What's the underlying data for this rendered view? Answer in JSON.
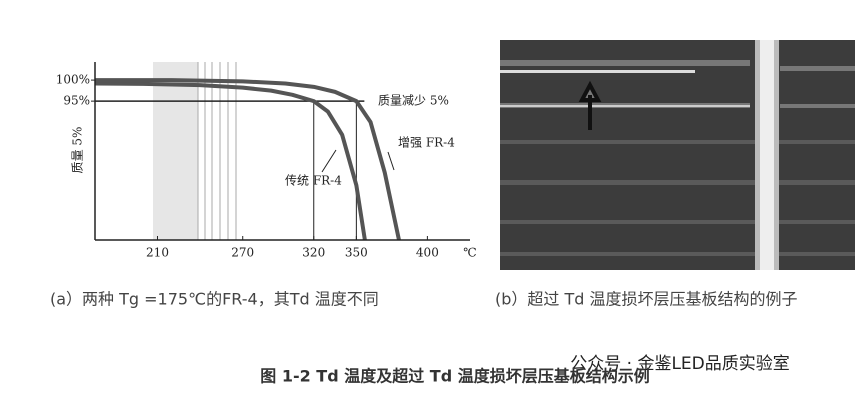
{
  "chart_data": {
    "type": "line",
    "y_label": "质量 5%",
    "x_unit": "℃",
    "annotation": "质量减少 5%",
    "xlim": [
      166,
      430
    ],
    "ylim": [
      62,
      104.3
    ],
    "xticks": [
      210,
      270,
      320,
      350,
      400
    ],
    "yticks": [
      {
        "value": 100,
        "label": "100%"
      },
      {
        "value": 95,
        "label": "95%"
      }
    ],
    "series": [
      {
        "name": "传统 FR-4",
        "color": "#555555",
        "x": [
          166,
          200,
          240,
          270,
          290,
          305,
          320,
          330,
          340,
          350,
          356
        ],
        "values": [
          99.2,
          99.1,
          98.8,
          98.2,
          97.5,
          96.5,
          95,
          92.5,
          87,
          75,
          62
        ]
      },
      {
        "name": "增强 FR-4",
        "color": "#555555",
        "x": [
          166,
          220,
          270,
          300,
          320,
          335,
          350,
          360,
          370,
          380
        ],
        "values": [
          100,
          100,
          99.7,
          99.2,
          98.4,
          97.2,
          95,
          90,
          78,
          62
        ]
      }
    ]
  },
  "captions": {
    "a": "(a）两种 Tg =175℃的FR-4，其Td 温度不同",
    "b": "(b）超过 Td 温度损坏层压基板结构的例子",
    "figure": "图 1-2  Td 温度及超过 Td 温度损坏层压基板结构示例",
    "watermark": "公众号 · 金鉴LED品质实验室"
  }
}
